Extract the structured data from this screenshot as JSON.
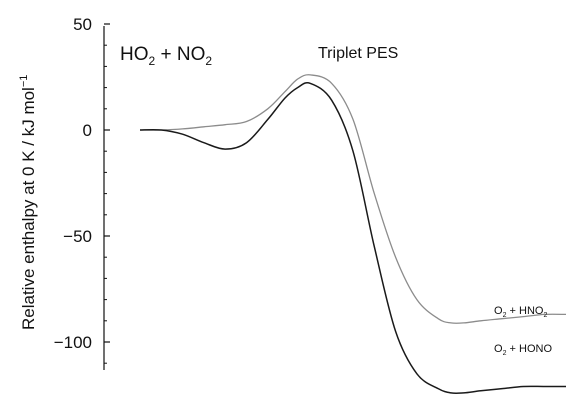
{
  "chart_data": {
    "type": "line",
    "title": "Triplet PES",
    "system_label": {
      "species_a": "HO",
      "sub_a": "2",
      "plus": " + ",
      "species_b": "NO",
      "sub_b": "2"
    },
    "ylabel": {
      "main": "Relative enthalpy at 0 K / kJ mol",
      "sup": "−1"
    },
    "xlabel": "",
    "ylim": [
      -122,
      50
    ],
    "xlim": [
      0,
      10
    ],
    "yticks": [
      50,
      0,
      -50,
      -100
    ],
    "ytick_labels": [
      "50",
      "0",
      "−50",
      "−100"
    ],
    "grid": false,
    "series": [
      {
        "name": "O2 + HNO2",
        "label": {
          "a": "O",
          "a_sub": "2",
          "plus": " + ",
          "b": "HNO",
          "b_sub": "2"
        },
        "color": "#8c8c8c",
        "x": [
          0,
          0.5,
          1.0,
          1.5,
          2.0,
          2.5,
          3.0,
          3.4,
          3.7,
          4.0,
          4.5,
          5.0,
          5.5,
          6.0,
          6.5,
          7.0,
          7.3,
          7.6,
          8.0,
          8.5,
          9.0,
          9.5,
          10.0
        ],
        "y": [
          0,
          0,
          0.5,
          1.5,
          2.5,
          4,
          10,
          18,
          24,
          26,
          22,
          5,
          -30,
          -60,
          -80,
          -89,
          -91,
          -91,
          -90,
          -89,
          -88,
          -87,
          -87
        ]
      },
      {
        "name": "O2 + HONO",
        "label": {
          "a": "O",
          "a_sub": "2",
          "plus": " + ",
          "b": "HONO",
          "b_sub": ""
        },
        "color": "#1a1a1a",
        "x": [
          0,
          0.5,
          1.0,
          1.5,
          2.0,
          2.5,
          3.0,
          3.4,
          3.7,
          4.0,
          4.5,
          5.0,
          5.5,
          6.0,
          6.5,
          7.0,
          7.3,
          7.6,
          8.0,
          8.5,
          9.0,
          9.5,
          10.0
        ],
        "y": [
          0,
          0,
          -2,
          -6,
          -9,
          -6,
          5,
          15,
          20,
          22,
          14,
          -10,
          -55,
          -95,
          -115,
          -122,
          -124,
          -124,
          -123,
          -122,
          -121,
          -121,
          -121
        ]
      }
    ]
  }
}
